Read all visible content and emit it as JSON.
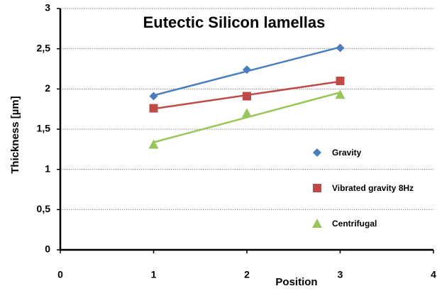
{
  "chart_data": {
    "type": "scatter",
    "title": "Eutectic Silicon lamellas",
    "xlabel": "Position",
    "ylabel": "Thickness  [µm]",
    "x": [
      1,
      2,
      3
    ],
    "series": [
      {
        "name": "Gravity",
        "color": "#4a7ebb",
        "marker": "diamond",
        "values": [
          1.91,
          2.24,
          2.51
        ]
      },
      {
        "name": "Vibrated gravity 8Hz",
        "color": "#be4b48",
        "marker": "square",
        "values": [
          1.76,
          1.91,
          2.1
        ]
      },
      {
        "name": "Centrifugal",
        "color": "#98c65a",
        "marker": "triangle",
        "values": [
          1.31,
          1.7,
          1.93
        ]
      }
    ],
    "trendline": "linear",
    "xlim": [
      0,
      4
    ],
    "xticks": [
      0,
      1,
      2,
      3,
      4
    ],
    "ylim": [
      0,
      3
    ],
    "yticks": [
      0,
      {
        "value": 0.5,
        "label": "0,5"
      },
      1,
      {
        "value": 1.5,
        "label": "1,5"
      },
      2,
      {
        "value": 2.5,
        "label": "2,5"
      },
      3
    ],
    "grid": true
  }
}
